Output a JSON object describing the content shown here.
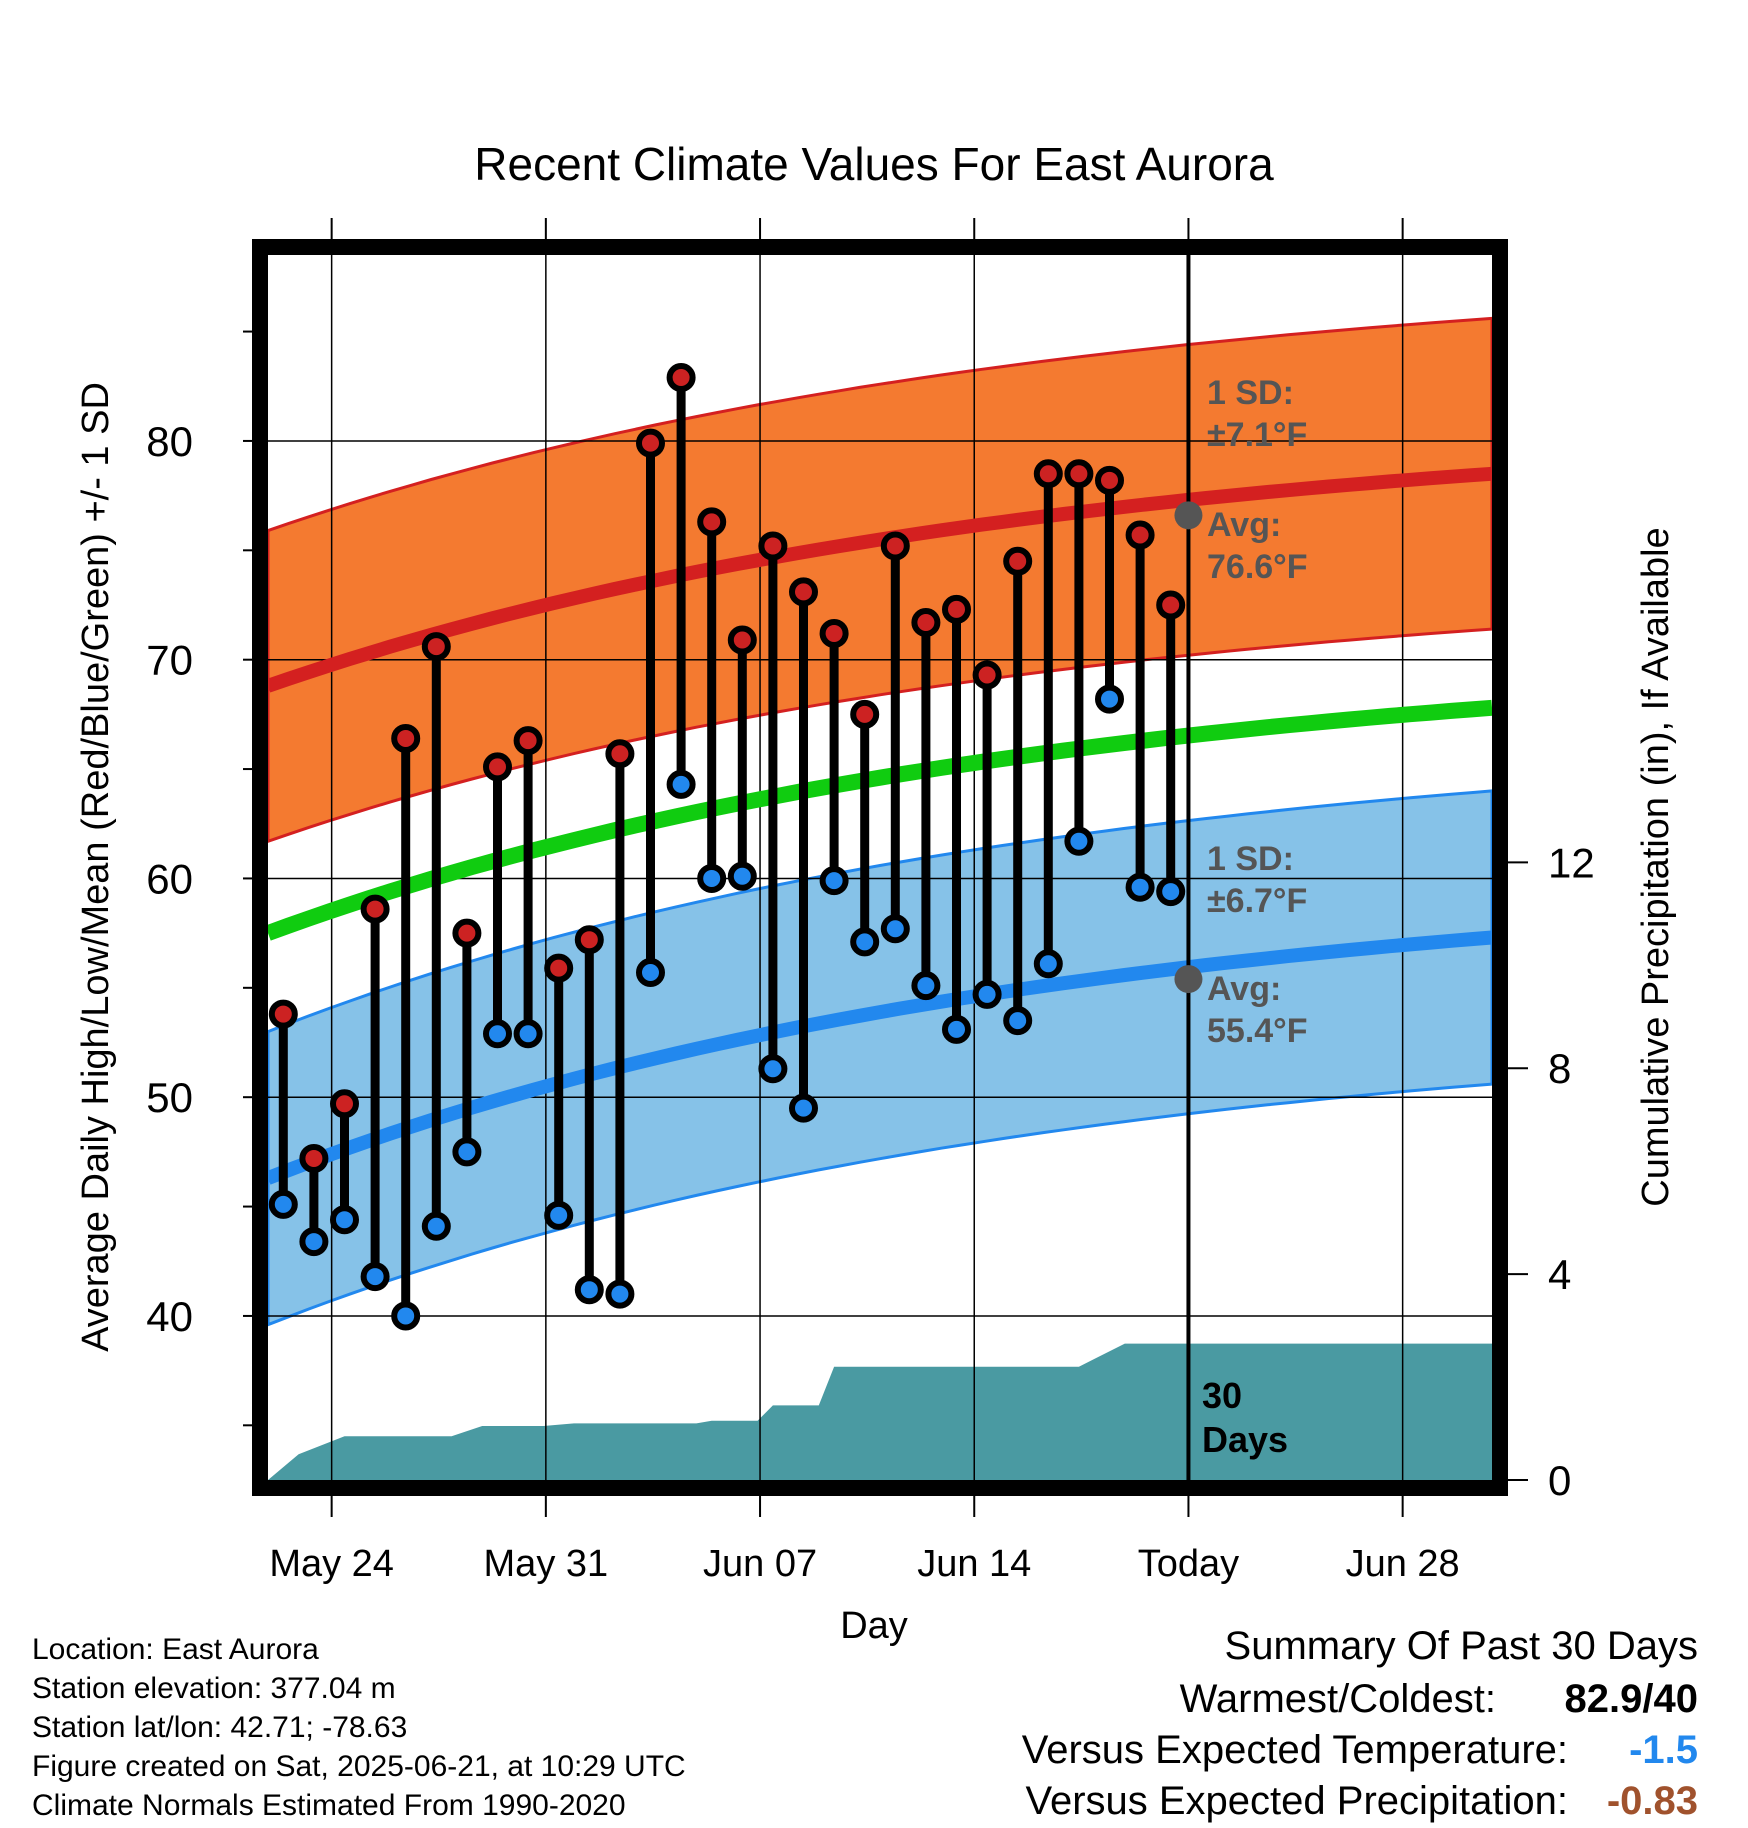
{
  "chart_data": {
    "type": "line",
    "title": "Recent Climate Values For East Aurora",
    "xlabel": "Day",
    "ylabel": "Average Daily High/Low/Mean (Red/Blue/Green) +/- 1 SD",
    "y2label": "Cumulative Precipitation (in), If Available",
    "ylim": [
      32.5,
      88.5
    ],
    "y2lim": [
      0,
      23.8
    ],
    "y_ticks": [
      "40",
      "50",
      "60",
      "70",
      "80"
    ],
    "y2_ticks": [
      "0",
      "4",
      "8",
      "12"
    ],
    "x_ticks": [
      "May 24",
      "May 31",
      "Jun 07",
      "Jun 14",
      "Today",
      "Jun 28"
    ],
    "x_tick_days": [
      2.58,
      9.58,
      16.58,
      23.58,
      30.58,
      37.58
    ],
    "grid": true,
    "days": [
      1,
      2,
      3,
      4,
      5,
      6,
      7,
      8,
      9,
      10,
      11,
      12,
      13,
      14,
      15,
      16,
      17,
      18,
      19,
      20,
      21,
      22,
      23,
      24,
      25,
      26,
      27,
      28,
      29,
      30
    ],
    "series": [
      {
        "name": "High",
        "color": "#cc2222",
        "values": [
          53.8,
          47.2,
          49.7,
          58.6,
          66.4,
          70.6,
          57.5,
          65.1,
          66.3,
          55.9,
          57.2,
          65.7,
          79.9,
          82.9,
          76.3,
          70.9,
          75.2,
          73.1,
          71.2,
          67.5,
          75.2,
          71.7,
          72.3,
          69.3,
          74.5,
          78.5,
          78.5,
          78.2,
          75.7,
          72.5
        ]
      },
      {
        "name": "Low",
        "color": "#2288ee",
        "values": [
          45.1,
          43.4,
          44.4,
          41.8,
          40.0,
          44.1,
          47.5,
          52.9,
          52.9,
          44.6,
          41.2,
          41.0,
          55.7,
          64.3,
          60.0,
          60.1,
          51.3,
          49.5,
          59.9,
          57.1,
          57.7,
          55.1,
          53.1,
          54.7,
          53.5,
          56.1,
          61.7,
          68.2,
          59.6,
          59.4
        ]
      }
    ],
    "normal_high": {
      "start": 68.8,
      "end": 78.5,
      "sd_label": "1 SD:",
      "sd_value": "±7.1°F",
      "avg_label": "Avg:",
      "avg_value": "76.6°F",
      "today_value": 76.6,
      "band_color": "#f47a30",
      "line_color": "#d42020"
    },
    "normal_mean": {
      "start": 57.5,
      "end": 67.8,
      "line_color": "#10cc10"
    },
    "normal_low": {
      "start": 46.3,
      "end": 57.3,
      "sd_label": "1 SD:",
      "sd_value": "±6.7°F",
      "avg_label": "Avg:",
      "avg_value": "55.4°F",
      "today_value": 55.4,
      "band_color": "#86c2e8",
      "line_color": "#2288ee"
    },
    "precipitation": {
      "color": "#4a9aa2",
      "days": [
        0.5,
        1.5,
        3.0,
        6.5,
        7.5,
        9.5,
        10.5,
        14.5,
        15.0,
        16.5,
        17.0,
        18.5,
        19.0,
        27.0,
        27.5,
        28.5,
        40.5
      ],
      "values": [
        0,
        0.5,
        0.85,
        0.85,
        1.05,
        1.05,
        1.1,
        1.1,
        1.15,
        1.15,
        1.45,
        1.45,
        2.2,
        2.2,
        2.35,
        2.65,
        2.65
      ]
    },
    "today_marker": "30\nDays"
  },
  "footer": {
    "location": "Location: East Aurora",
    "elevation": "Station elevation: 377.04 m",
    "latlon": "Station lat/lon: 42.71; -78.63",
    "created": "Figure created on Sat, 2025-06-21, at 10:29 UTC",
    "normals": "Climate Normals Estimated From 1990-2020"
  },
  "summary": {
    "title": "Summary Of Past 30 Days",
    "warm_cold_label": "Warmest/Coldest:",
    "warm_cold_value": "82.9/40",
    "temp_label": "Versus Expected Temperature:",
    "temp_value": "-1.5",
    "temp_color": "#2288ee",
    "precip_label": "Versus Expected Precipitation:",
    "precip_value": "-0.83",
    "precip_color": "#a0522d"
  }
}
